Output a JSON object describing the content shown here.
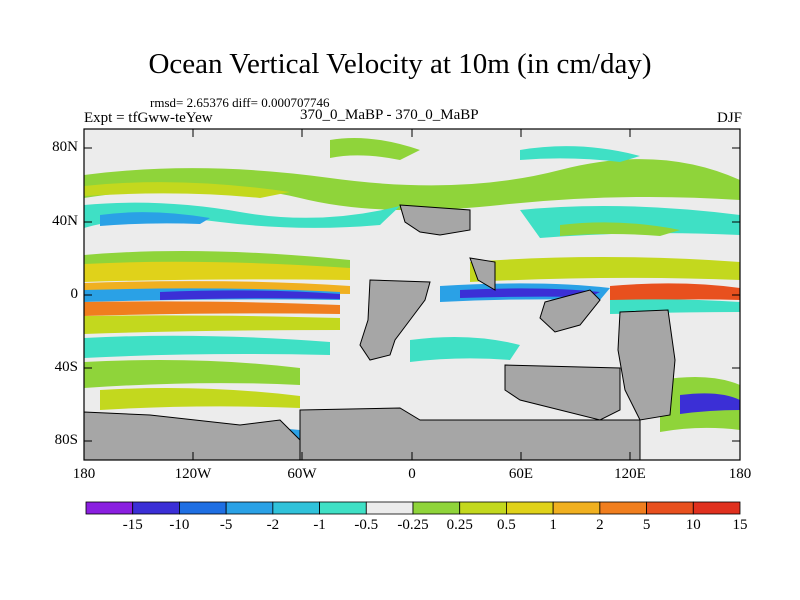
{
  "title": "Ocean Vertical Velocity at 10m (in cm/day)",
  "stats": "rmsd= 2.65376  diff= 0.000707746",
  "experiment": "Expt = tfGww-teYew",
  "comparison": "370_0_MaBP - 370_0_MaBP",
  "season": "DJF",
  "lat_ticks": [
    "80N",
    "40N",
    "0",
    "40S",
    "80S"
  ],
  "lon_ticks": [
    "180",
    "120W",
    "60W",
    "0",
    "60E",
    "120E",
    "180"
  ],
  "colorbar": {
    "labels": [
      "-15",
      "-10",
      "-5",
      "-2",
      "-1",
      "-0.5",
      "-0.25",
      "0.25",
      "0.5",
      "1",
      "2",
      "5",
      "10",
      "15"
    ],
    "colors": [
      "#8a1fe0",
      "#3b2fd6",
      "#1f6fe3",
      "#2aa1e6",
      "#30c2da",
      "#3fe0c5",
      "#ececec",
      "#8fd43a",
      "#c3d81e",
      "#e0d21a",
      "#f0b020",
      "#f07e1e",
      "#e8501e",
      "#e0301e"
    ]
  },
  "land_color": "#a6a6a6"
}
